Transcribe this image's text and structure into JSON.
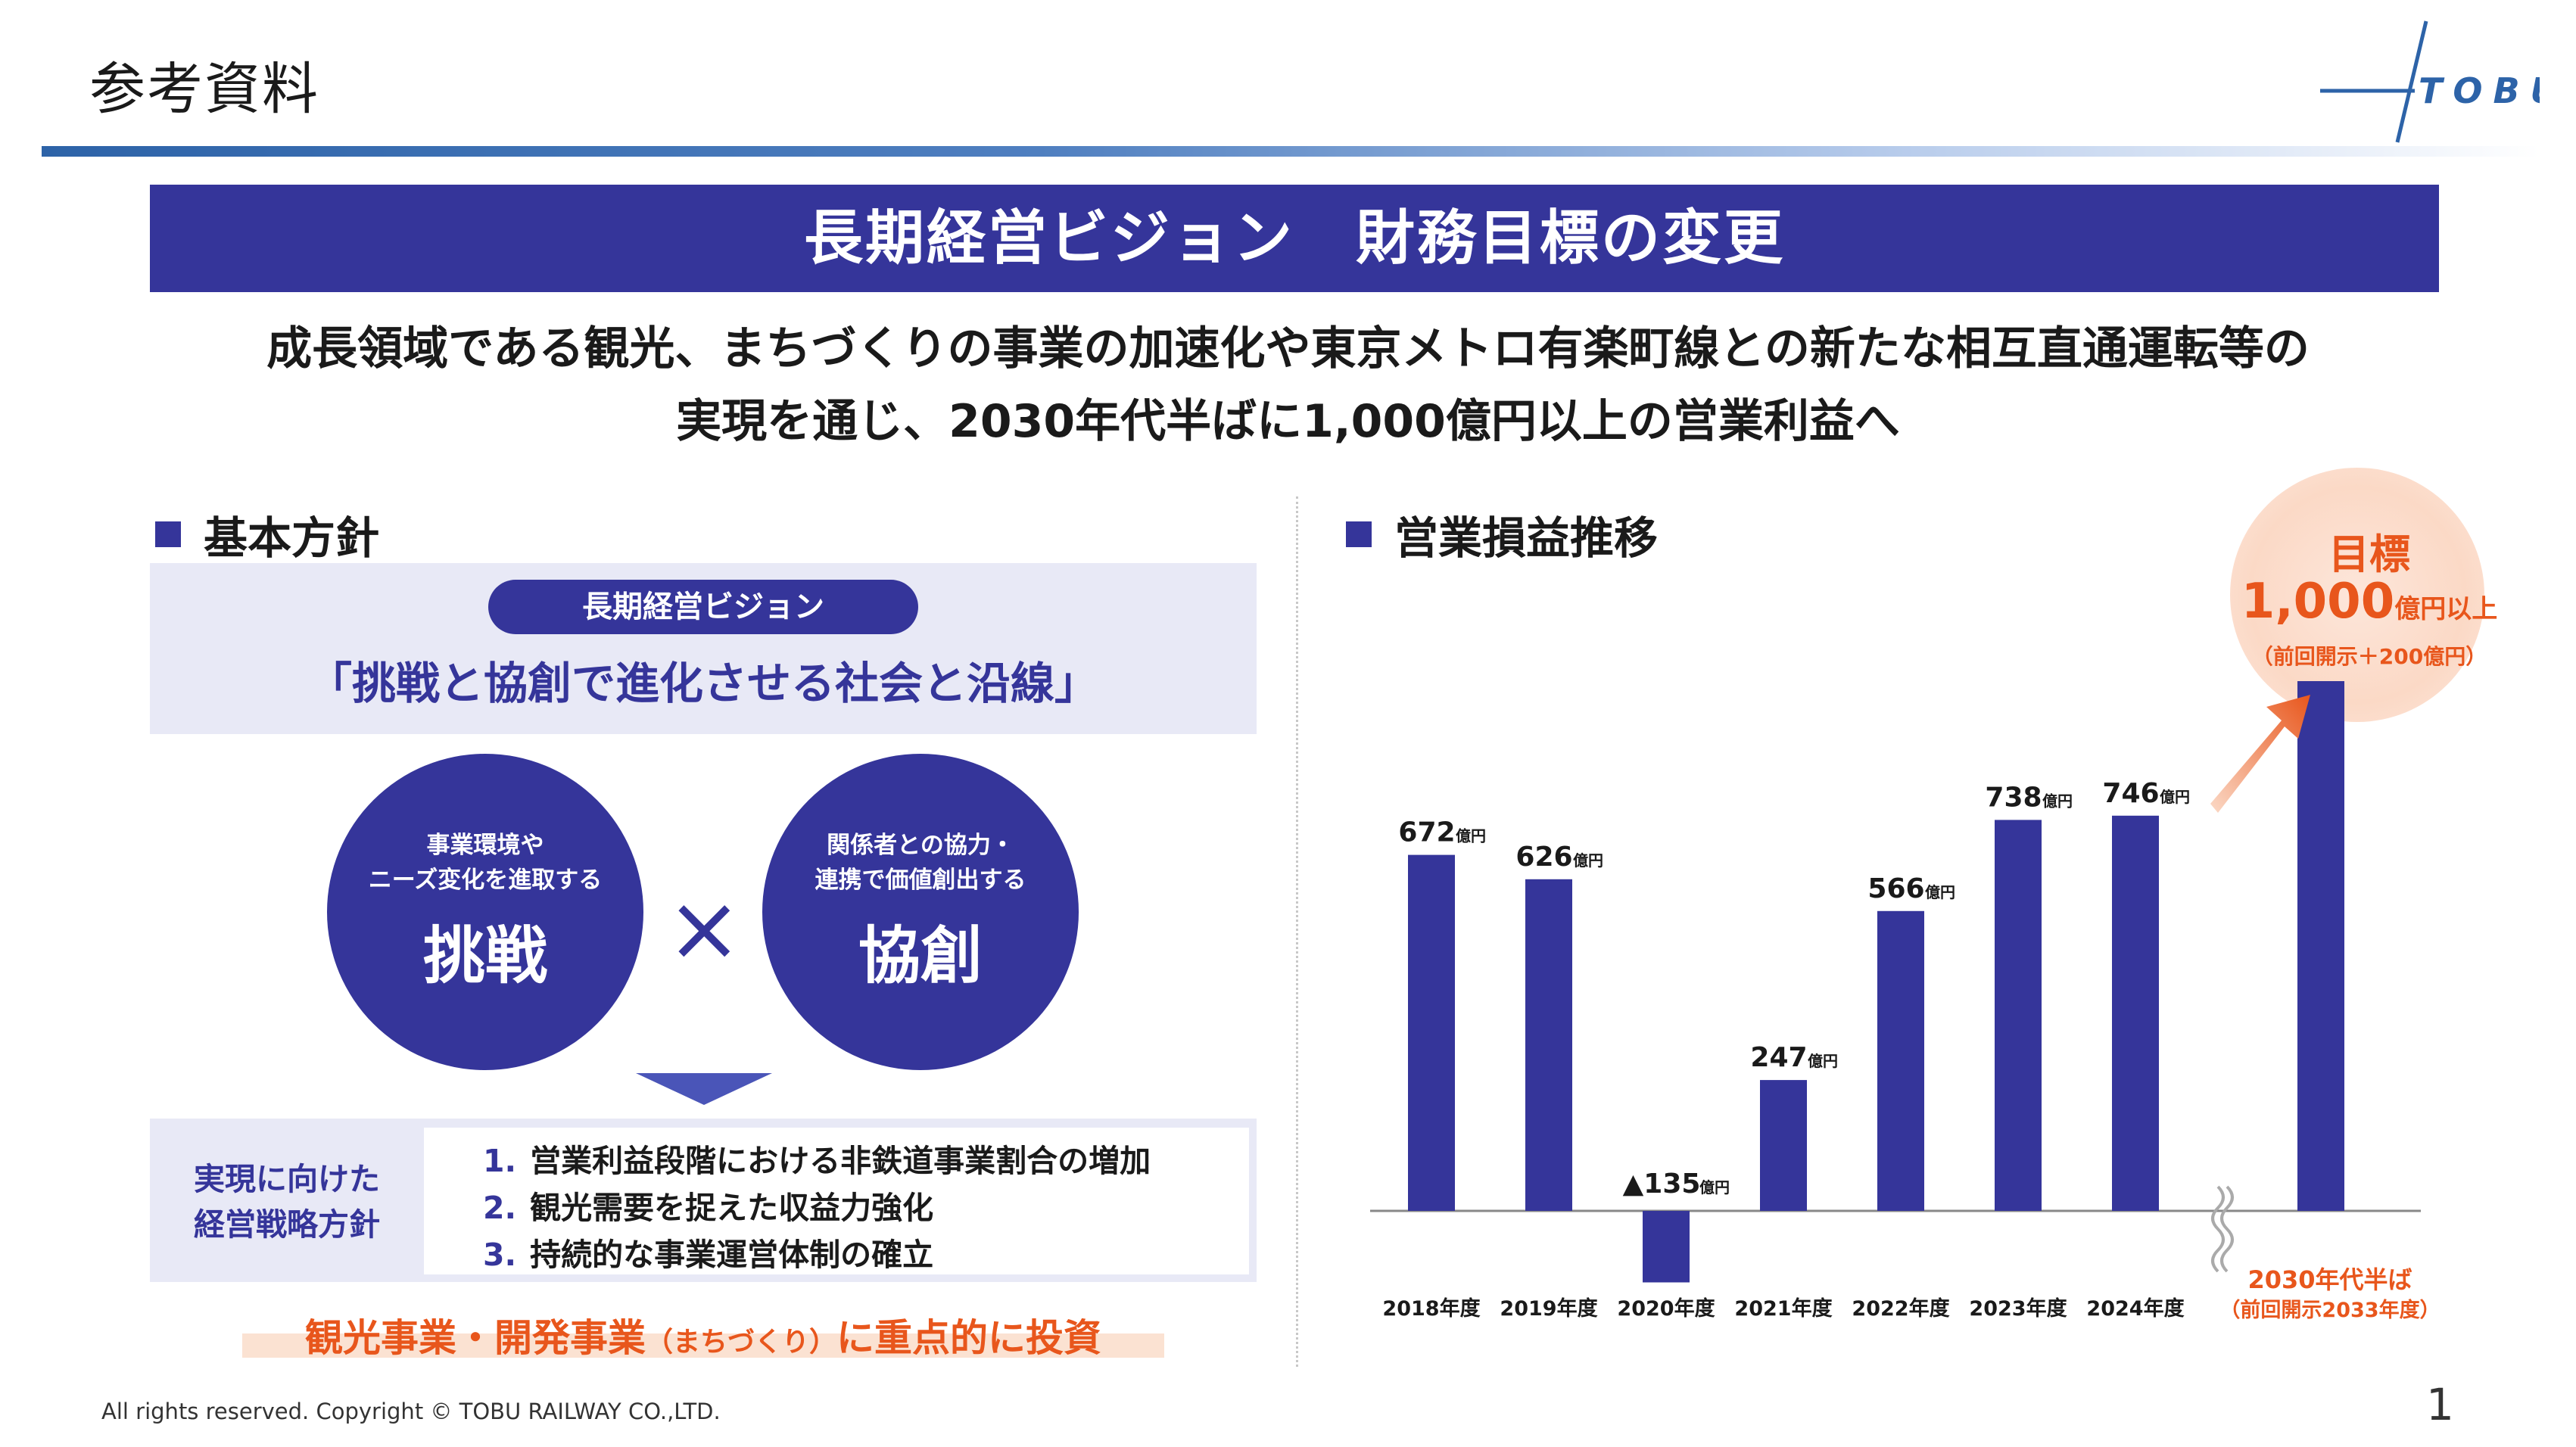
{
  "header": {
    "page_title": "参考資料",
    "logo_text": "TOBU"
  },
  "banner": {
    "title": "長期経営ビジョン　財務目標の変更"
  },
  "lead": {
    "line1": "成長領域である観光、まちづくりの事業の加速化や東京メトロ有楽町線との新たな相互直通運転等の",
    "line2": "実現を通じ、2030年代半ばに1,000億円以上の営業利益へ"
  },
  "policy": {
    "heading": "基本方針",
    "vision_pill": "長期経営ビジョン",
    "vision_text": "「挑戦と協創で進化させる社会と沿線」",
    "circle_left": {
      "sub1": "事業環境や",
      "sub2": "ニーズ変化を進取する",
      "big": "挑戦"
    },
    "times": "×",
    "circle_right": {
      "sub1": "関係者との協力・",
      "sub2": "連携で価値創出する",
      "big": "協創"
    },
    "strategy_label1": "実現に向けた",
    "strategy_label2": "経営戦略方針",
    "strategies": [
      {
        "num": "1.",
        "text": "営業利益段階における非鉄道事業割合の増加"
      },
      {
        "num": "2.",
        "text": "観光需要を捉えた収益力強化"
      },
      {
        "num": "3.",
        "text": "持続的な事業運営体制の確立"
      }
    ],
    "focus_a": "観光事業・開発事業",
    "focus_b": "（まちづくり）",
    "focus_c": "に重点的に投資"
  },
  "profit": {
    "heading": "営業損益推移",
    "target": {
      "label": "目標",
      "value": "1,000",
      "unit": "億円以上",
      "note": "（前回開示＋200億円）",
      "period": "2030年代半ば",
      "period_note": "（前回開示2033年度）"
    }
  },
  "chart_data": {
    "type": "bar",
    "unit_label": "億円",
    "categories": [
      "2018年度",
      "2019年度",
      "2020年度",
      "2021年度",
      "2022年度",
      "2023年度",
      "2024年度"
    ],
    "values": [
      672,
      626,
      -135,
      247,
      566,
      738,
      746
    ],
    "labels": [
      "672",
      "626",
      "▲135",
      "247",
      "566",
      "738",
      "746"
    ],
    "target_value": 1000,
    "bar_color": "#35359a",
    "accent_color": "#e8561c"
  },
  "footer": {
    "copyright": "All rights reserved. Copyright © TOBU RAILWAY CO.,LTD.",
    "page_number": "1"
  }
}
